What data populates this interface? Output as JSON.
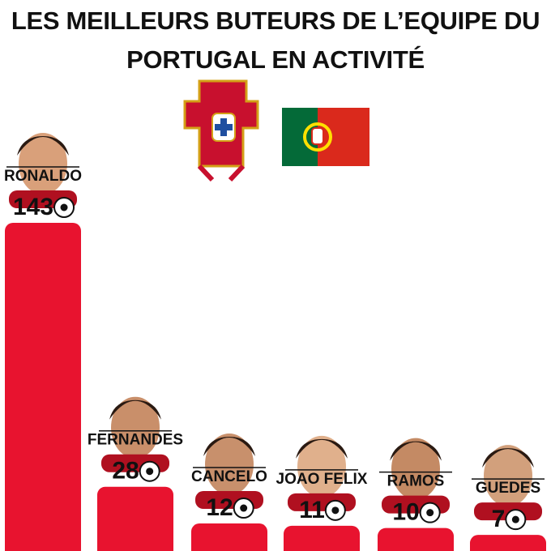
{
  "chart_data": {
    "type": "bar",
    "title": "LES MEILLEURS BUTEURS DE L’EQUIPE DU PORTUGAL EN ACTIVITÉ",
    "categories": [
      "RONALDO",
      "FERNANDES",
      "CANCELO",
      "JOAO FELIX",
      "RAMOS",
      "GUEDES"
    ],
    "values": [
      143,
      28,
      12,
      11,
      10,
      7
    ],
    "color": "#e8132f"
  }
}
